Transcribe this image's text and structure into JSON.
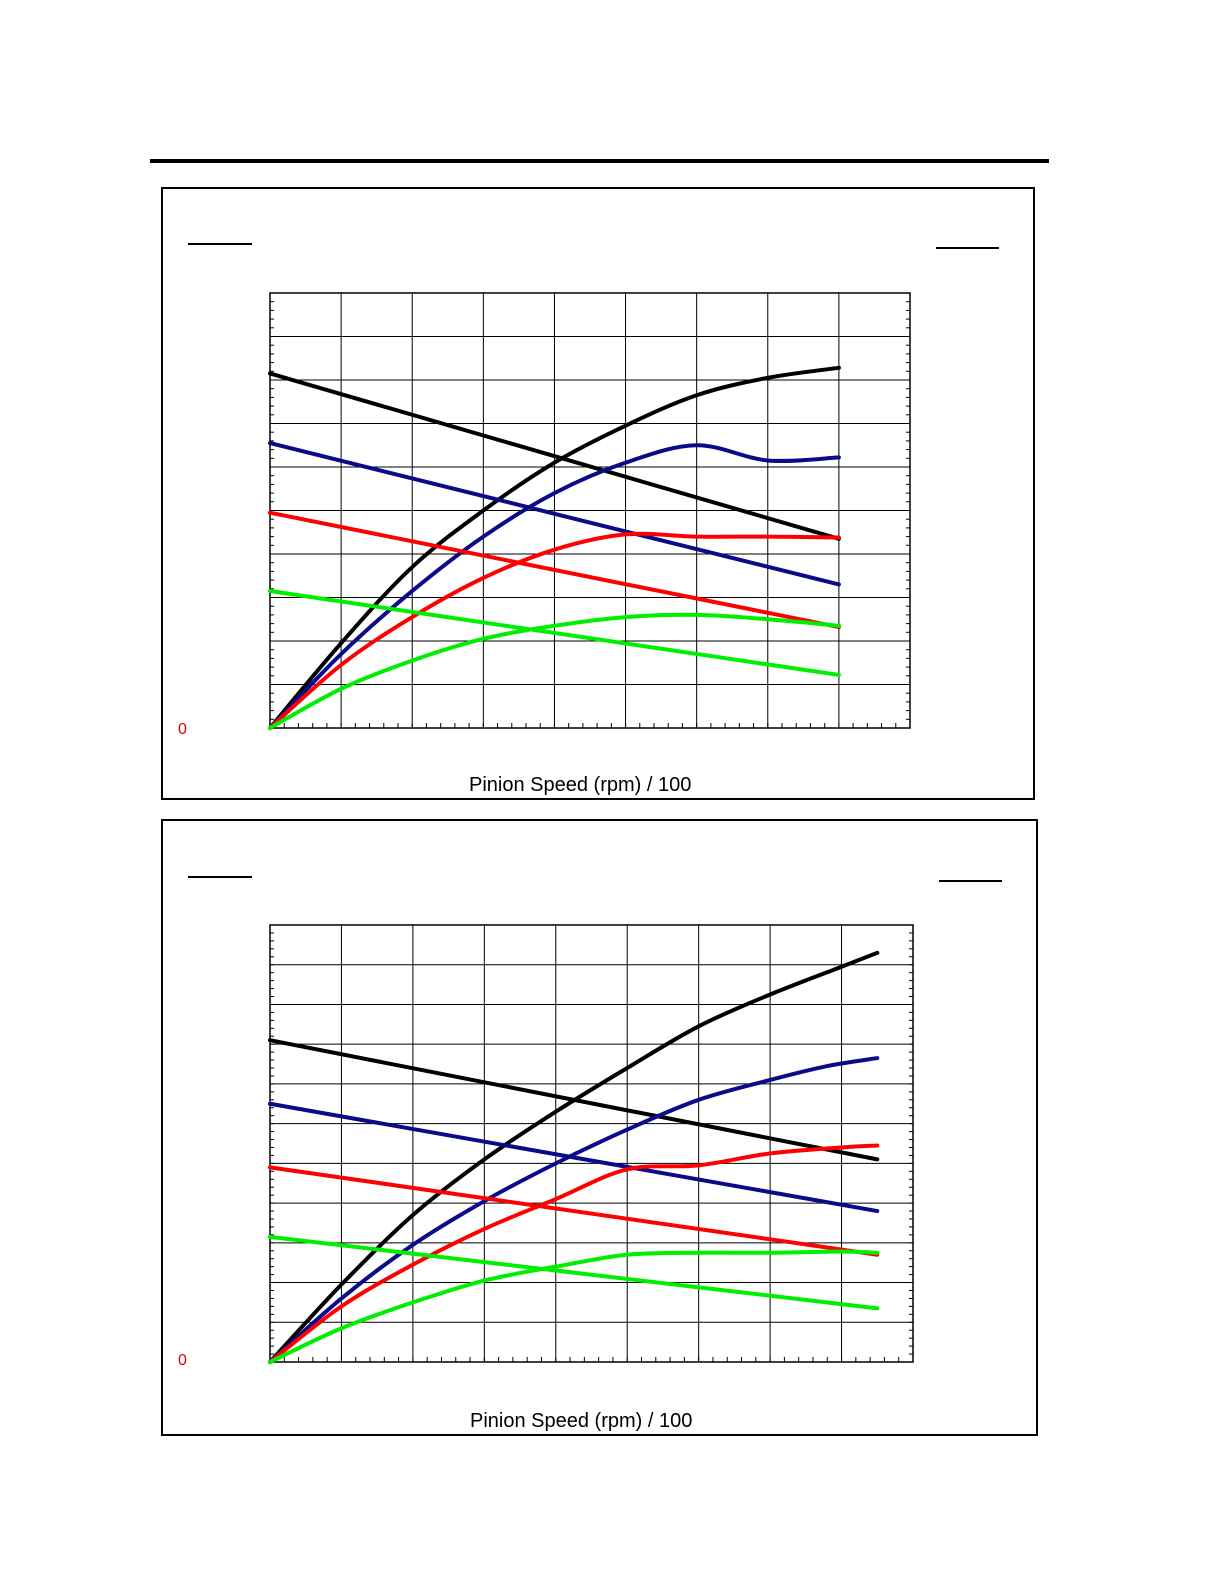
{
  "chart_data": [
    {
      "type": "line",
      "xlabel": "Pinion Speed (rpm) / 100",
      "y_axis_label_left": "0",
      "xlim": [
        0,
        9
      ],
      "ylim": [
        0,
        10
      ],
      "grid": true,
      "series": [
        {
          "color": "#000000",
          "x": [
            0,
            1,
            2,
            3,
            4,
            5,
            6,
            7,
            8
          ],
          "y": [
            0,
            1.95,
            3.7,
            5.0,
            6.1,
            6.95,
            7.65,
            8.05,
            8.28
          ]
        },
        {
          "color": "#000000",
          "x": [
            0,
            8
          ],
          "y": [
            8.15,
            4.35
          ]
        },
        {
          "color": "#0a0a8a",
          "x": [
            0,
            1,
            2,
            3,
            4,
            5,
            6,
            7,
            8
          ],
          "y": [
            0,
            1.7,
            3.15,
            4.4,
            5.4,
            6.1,
            6.5,
            6.15,
            6.22
          ]
        },
        {
          "color": "#0a0a8a",
          "x": [
            0,
            8
          ],
          "y": [
            6.55,
            3.3
          ]
        },
        {
          "color": "#ff0000",
          "x": [
            0,
            1,
            2,
            3,
            4,
            5,
            6,
            7,
            8
          ],
          "y": [
            0,
            1.45,
            2.55,
            3.45,
            4.1,
            4.45,
            4.4,
            4.4,
            4.38
          ]
        },
        {
          "color": "#ff0000",
          "x": [
            0,
            8
          ],
          "y": [
            4.95,
            2.32
          ]
        },
        {
          "color": "#00ee00",
          "x": [
            0,
            1,
            2,
            3,
            4,
            5,
            6,
            7,
            8
          ],
          "y": [
            0,
            0.9,
            1.55,
            2.05,
            2.35,
            2.55,
            2.6,
            2.5,
            2.35
          ]
        },
        {
          "color": "#00ee00",
          "x": [
            0,
            8
          ],
          "y": [
            3.15,
            1.22
          ]
        }
      ]
    },
    {
      "type": "line",
      "xlabel": "Pinion Speed (rpm) / 100",
      "y_axis_label_left": "0",
      "xlim": [
        0,
        9
      ],
      "ylim": [
        0,
        11
      ],
      "grid": true,
      "series": [
        {
          "color": "#000000",
          "x": [
            0,
            1,
            2,
            3,
            4,
            5,
            6,
            7,
            8,
            8.5
          ],
          "y": [
            0,
            1.95,
            3.7,
            5.1,
            6.3,
            7.4,
            8.45,
            9.25,
            9.95,
            10.3
          ]
        },
        {
          "color": "#000000",
          "x": [
            0,
            8.5
          ],
          "y": [
            8.1,
            5.1
          ]
        },
        {
          "color": "#0a0a8a",
          "x": [
            0,
            1,
            2,
            3,
            4,
            5,
            6,
            7,
            7.8,
            8.5
          ],
          "y": [
            0,
            1.6,
            2.95,
            4.05,
            5.0,
            5.85,
            6.6,
            7.1,
            7.45,
            7.65
          ]
        },
        {
          "color": "#0a0a8a",
          "x": [
            0,
            8.5
          ],
          "y": [
            6.5,
            3.8
          ]
        },
        {
          "color": "#ff0000",
          "x": [
            0,
            1,
            2,
            3,
            4,
            5,
            6,
            7,
            8,
            8.5
          ],
          "y": [
            0,
            1.4,
            2.45,
            3.35,
            4.1,
            4.85,
            4.95,
            5.25,
            5.4,
            5.45
          ]
        },
        {
          "color": "#ff0000",
          "x": [
            0,
            8.5
          ],
          "y": [
            4.9,
            2.7
          ]
        },
        {
          "color": "#00ee00",
          "x": [
            0,
            1,
            2,
            3,
            4,
            5,
            6,
            7,
            8,
            8.5
          ],
          "y": [
            0,
            0.85,
            1.5,
            2.05,
            2.4,
            2.7,
            2.75,
            2.75,
            2.78,
            2.75
          ]
        },
        {
          "color": "#00ee00",
          "x": [
            0,
            8.5
          ],
          "y": [
            3.15,
            1.35
          ]
        }
      ]
    }
  ]
}
